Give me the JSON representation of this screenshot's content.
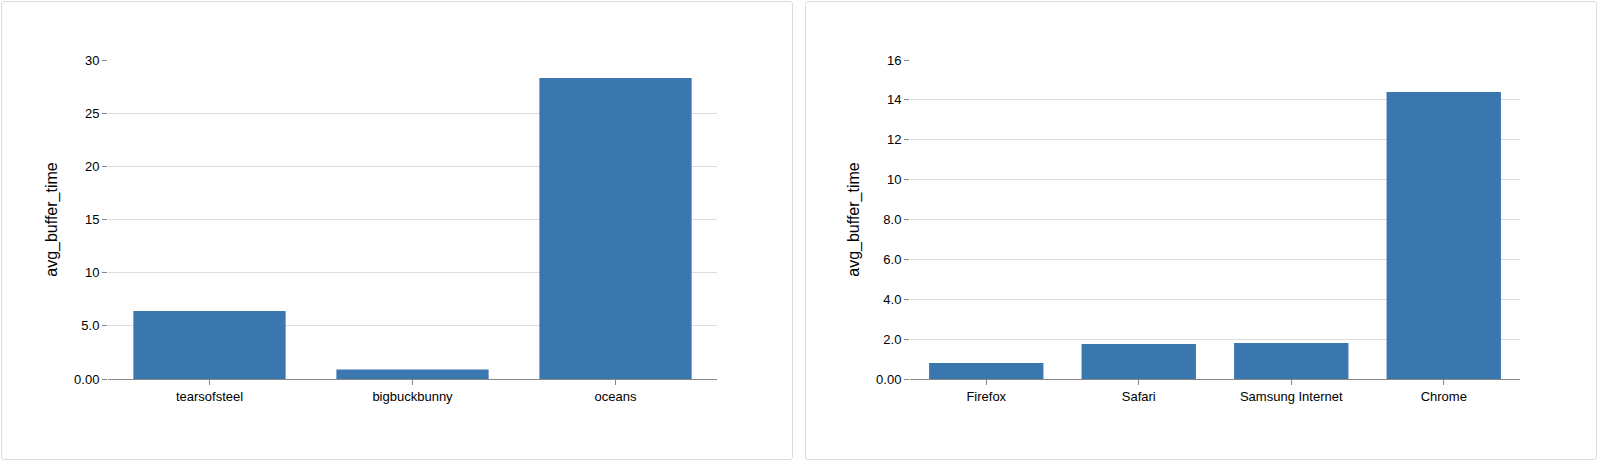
{
  "chart_data": [
    {
      "type": "bar",
      "y_label": "avg_buffer_time",
      "categories": [
        "tearsofsteel",
        "bigbuckbunny",
        "oceans"
      ],
      "values": [
        6.4,
        0.9,
        28.3
      ],
      "color": "#3b77af",
      "ylim": [
        0,
        30
      ],
      "yticks": [
        {
          "value": 0,
          "label": "0.00"
        },
        {
          "value": 5,
          "label": "5.0"
        },
        10,
        15,
        20,
        25,
        30
      ],
      "grid": true
    },
    {
      "type": "bar",
      "y_label": "avg_buffer_time",
      "categories": [
        "Firefox",
        "Safari",
        "Samsung Internet",
        "Chrome"
      ],
      "values": [
        0.8,
        1.75,
        1.8,
        14.4
      ],
      "color": "#3b77af",
      "ylim": [
        0,
        16
      ],
      "yticks": [
        {
          "value": 0,
          "label": "0.00"
        },
        {
          "value": 2,
          "label": "2.0"
        },
        {
          "value": 4,
          "label": "4.0"
        },
        {
          "value": 6,
          "label": "6.0"
        },
        {
          "value": 8,
          "label": "8.0"
        },
        10,
        12,
        14,
        16
      ],
      "grid": true
    }
  ]
}
